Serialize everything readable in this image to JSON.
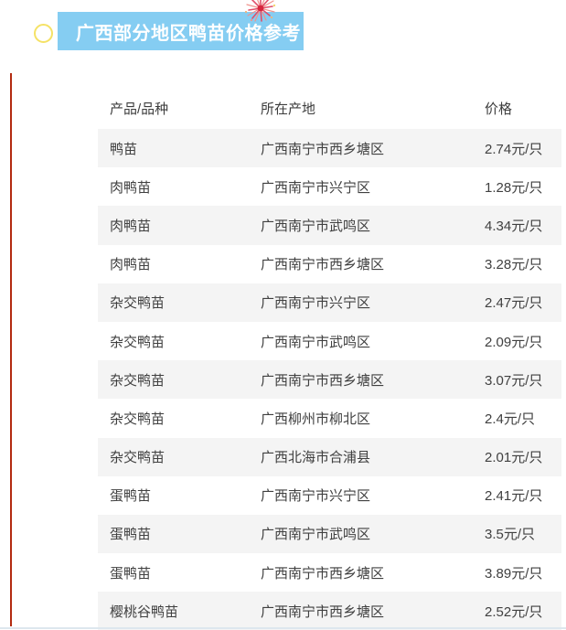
{
  "header": {
    "title": "广西部分地区鸭苗价格参考",
    "banner_color": "#85cdf2",
    "accent_line_color": "#b32b10",
    "circle_color": "#f5e266",
    "firework_color": "#d7263d"
  },
  "table": {
    "columns": [
      "产品/品种",
      "所在产地",
      "价格"
    ],
    "rows": [
      [
        "鸭苗",
        "广西南宁市西乡塘区",
        "2.74元/只"
      ],
      [
        "肉鸭苗",
        "广西南宁市兴宁区",
        "1.28元/只"
      ],
      [
        "肉鸭苗",
        "广西南宁市武鸣区",
        "4.34元/只"
      ],
      [
        "肉鸭苗",
        "广西南宁市西乡塘区",
        "3.28元/只"
      ],
      [
        "杂交鸭苗",
        "广西南宁市兴宁区",
        "2.47元/只"
      ],
      [
        "杂交鸭苗",
        "广西南宁市武鸣区",
        "2.09元/只"
      ],
      [
        "杂交鸭苗",
        "广西南宁市西乡塘区",
        "3.07元/只"
      ],
      [
        "杂交鸭苗",
        "广西柳州市柳北区",
        "2.4元/只"
      ],
      [
        "杂交鸭苗",
        "广西北海市合浦县",
        "2.01元/只"
      ],
      [
        "蛋鸭苗",
        "广西南宁市兴宁区",
        "2.41元/只"
      ],
      [
        "蛋鸭苗",
        "广西南宁市武鸣区",
        "3.5元/只"
      ],
      [
        "蛋鸭苗",
        "广西南宁市西乡塘区",
        "3.89元/只"
      ],
      [
        "樱桃谷鸭苗",
        "广西南宁市西乡塘区",
        "2.52元/只"
      ]
    ],
    "stripe_color": "#f4f4f4"
  }
}
